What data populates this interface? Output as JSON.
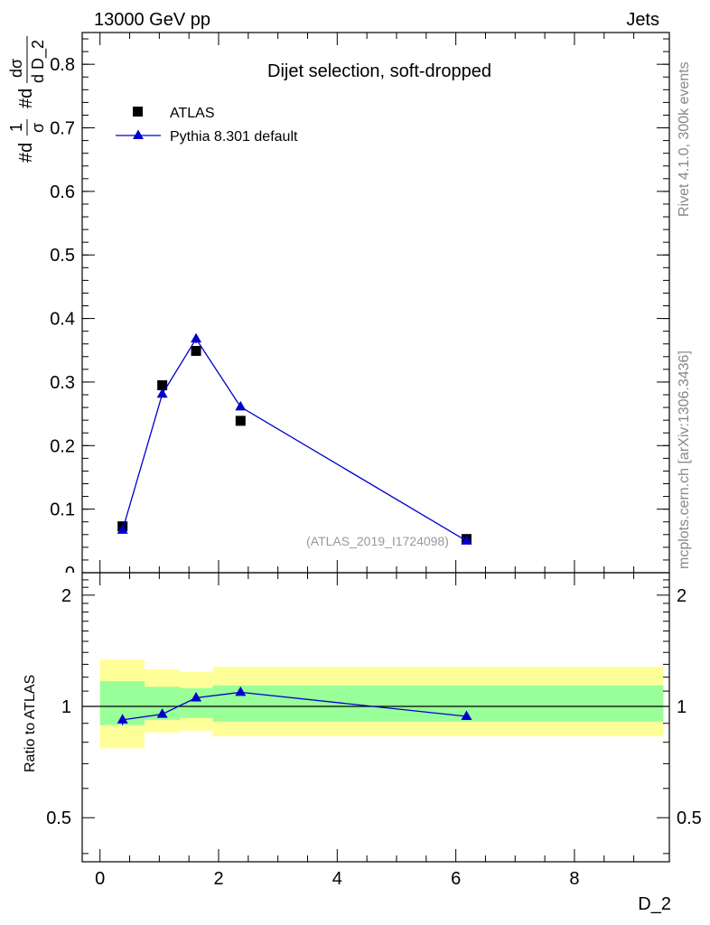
{
  "header": {
    "energy_label": "13000 GeV pp",
    "process_label": "Jets",
    "rivet_label": "Rivet 4.1.0,  300k events",
    "mcplots_label": "mcplots.cern.ch [arXiv:1306.3436]"
  },
  "chart_data": [
    {
      "type": "scatter",
      "title": "Dijet selection, soft-dropped",
      "ylabel": "#d1/σ #ddσ/d D_2",
      "ylabel_parts": {
        "frac1_num": "1",
        "frac1_den": "σ",
        "frac2_num": "dσ",
        "frac2_den": "d D_2",
        "d1": "#d",
        "d2": "#d"
      },
      "xlim": [
        -0.3,
        9.6
      ],
      "ylim": [
        0,
        0.85
      ],
      "yticks": [
        0.1,
        0.2,
        0.3,
        0.4,
        0.5,
        0.6,
        0.7,
        0.8
      ],
      "ytick_labels": [
        "0.1",
        "0.2",
        "0.3",
        "0.4",
        "0.5",
        "0.6",
        "0.7",
        "0.8"
      ],
      "ytick_partial_label": "0",
      "watermark": "(ATLAS_2019_I1724098)",
      "series": [
        {
          "name": "ATLAS",
          "marker": "square",
          "color": "#000000",
          "x": [
            0.38,
            1.05,
            1.62,
            2.37,
            6.18
          ],
          "y": [
            0.073,
            0.295,
            0.349,
            0.239,
            0.053
          ]
        },
        {
          "name": "Pythia 8.301 default",
          "marker": "triangle",
          "color": "#0000cc",
          "x": [
            0.38,
            1.05,
            1.62,
            2.37,
            6.18
          ],
          "y": [
            0.067,
            0.281,
            0.368,
            0.261,
            0.05
          ],
          "yerr": [
            0.004,
            0.005,
            0.007,
            0.003,
            0.002
          ]
        }
      ]
    },
    {
      "type": "scatter",
      "xlabel": "D_2",
      "ylabel": "Ratio to ATLAS",
      "xlim": [
        -0.3,
        9.6
      ],
      "ylim": [
        0.38,
        2.3
      ],
      "yticks": [
        0.5,
        1,
        2
      ],
      "ytick_labels": [
        "0.5",
        "1",
        "2"
      ],
      "xticks": [
        0,
        2,
        4,
        6,
        8
      ],
      "xtick_labels": [
        "0",
        "2",
        "4",
        "6",
        "8"
      ],
      "bands": [
        {
          "x0": 0.0,
          "x1": 0.75,
          "yellow": [
            0.77,
            1.34
          ],
          "green": [
            0.89,
            1.17
          ]
        },
        {
          "x0": 0.75,
          "x1": 1.35,
          "yellow": [
            0.85,
            1.26
          ],
          "green": [
            0.92,
            1.13
          ]
        },
        {
          "x0": 1.35,
          "x1": 1.9,
          "yellow": [
            0.86,
            1.24
          ],
          "green": [
            0.93,
            1.12
          ]
        },
        {
          "x0": 1.9,
          "x1": 9.5,
          "yellow": [
            0.83,
            1.28
          ],
          "green": [
            0.91,
            1.14
          ]
        }
      ],
      "series": [
        {
          "name": "Pythia 8.301 default",
          "marker": "triangle",
          "color": "#0000cc",
          "x": [
            0.38,
            1.05,
            1.62,
            2.37,
            6.18
          ],
          "y": [
            0.92,
            0.953,
            1.055,
            1.092,
            0.94
          ],
          "yerr": [
            0.03,
            0.015,
            0.015,
            0.012,
            0.01
          ]
        }
      ]
    }
  ]
}
